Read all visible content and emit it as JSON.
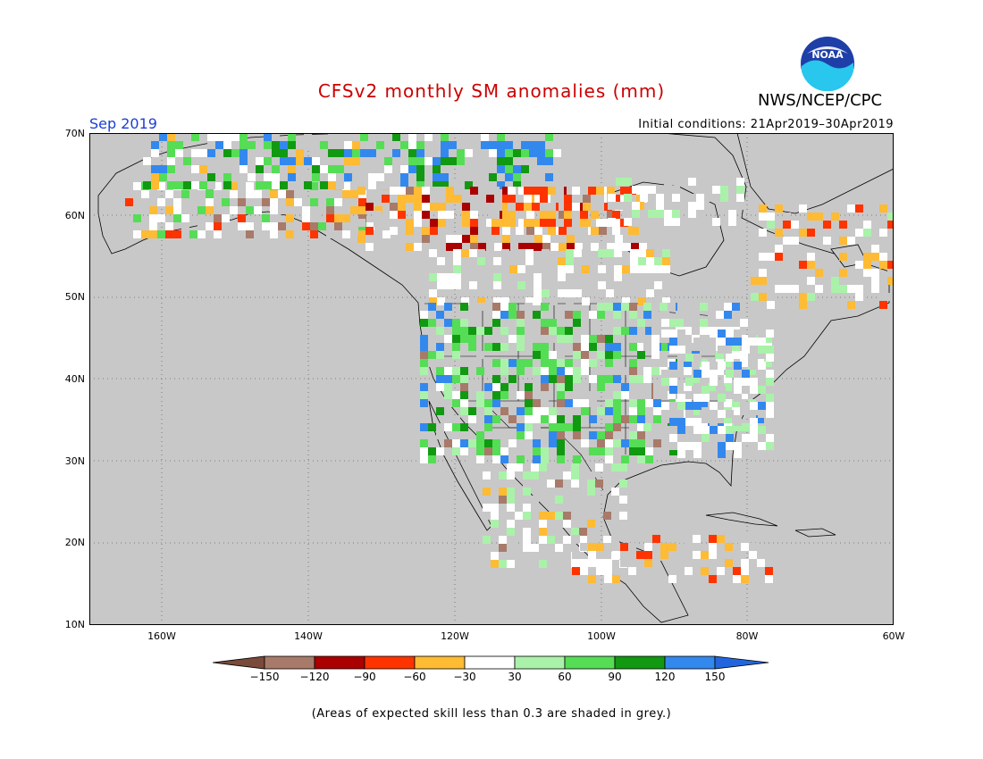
{
  "title": "CFSv2 monthly SM anomalies (mm)",
  "agency": "NWS/NCEP/CPC",
  "logo_text": "NOAA",
  "valid_month": "Sep 2019",
  "initial_conditions": "Initial conditions: 21Apr2019–30Apr2019",
  "footnote": "(Areas of expected skill less than 0.3 are shaded in grey.)",
  "map": {
    "lon_range": [
      -170,
      -60
    ],
    "lat_range": [
      10,
      70
    ],
    "lat_labels": [
      "70N",
      "60N",
      "50N",
      "40N",
      "30N",
      "20N",
      "10N"
    ],
    "lon_labels": [
      "160W",
      "140W",
      "120W",
      "100W",
      "80W",
      "60W"
    ],
    "gridlines": true
  },
  "legend": {
    "unit": "mm",
    "tick_labels": [
      "−150",
      "−120",
      "−90",
      "−60",
      "−30",
      "30",
      "60",
      "90",
      "120",
      "150"
    ],
    "colors": [
      "#7a4a3a",
      "#a87a6a",
      "#aa0000",
      "#ff3300",
      "#ffbb33",
      "#ffffff",
      "#aaf2aa",
      "#55dd55",
      "#119911",
      "#3388ee",
      "#2266dd"
    ]
  },
  "colors": {
    "grey_low_skill": "#c8c8c8",
    "ocean": "#c8c8c8",
    "title_red": "#cc0000",
    "month_blue": "#1a3fd6"
  }
}
